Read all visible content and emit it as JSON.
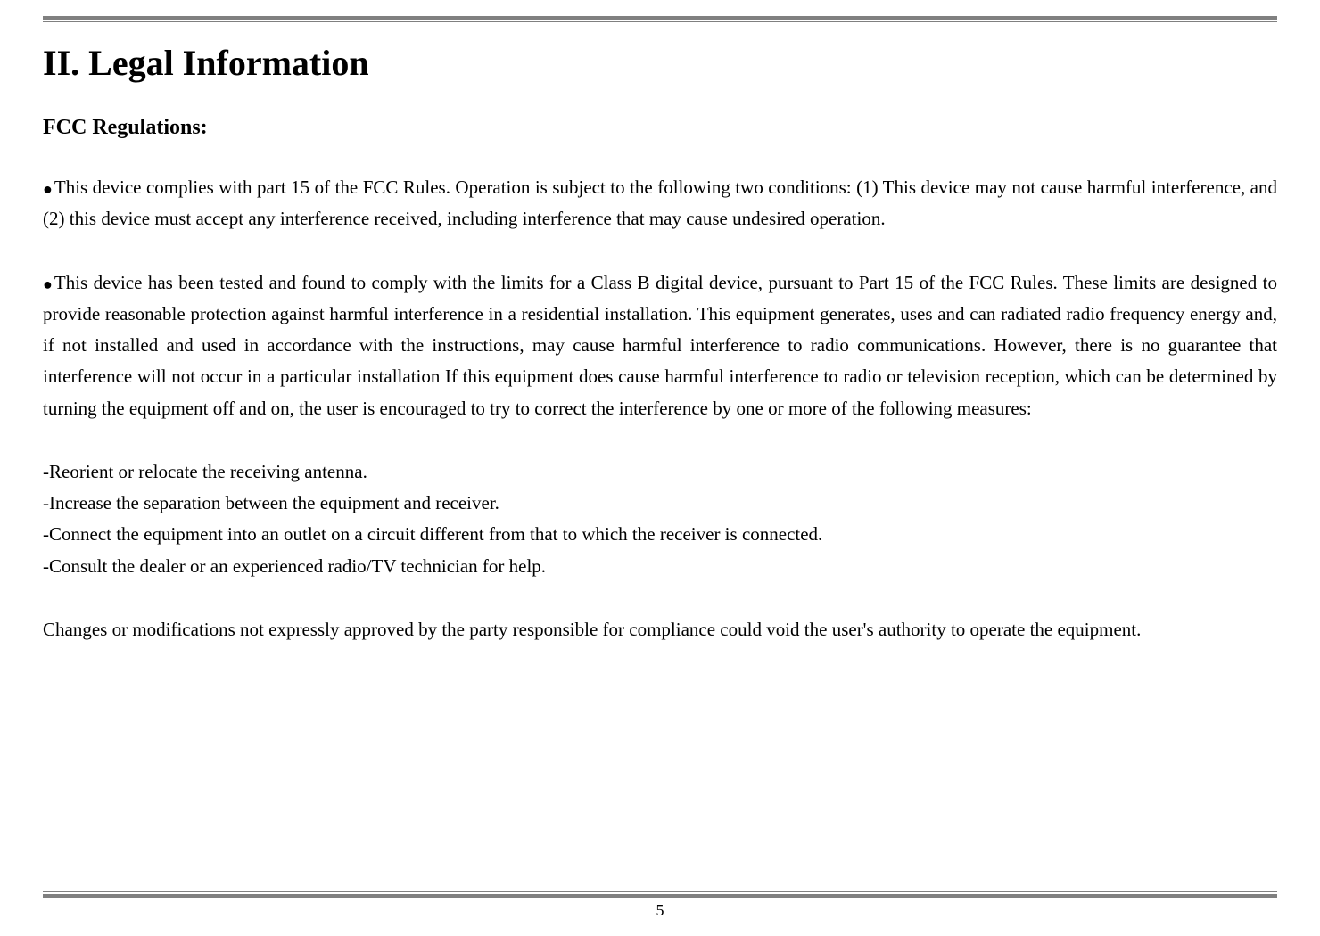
{
  "document": {
    "title": "II. Legal Information",
    "section_heading": "FCC Regulations:",
    "bullet_symbol": "●",
    "para1": "This device complies with part 15 of the FCC Rules. Operation is subject to the following two conditions: (1) This device may not cause harmful interference, and (2) this device must accept any interference received, including interference that may cause undesired operation.",
    "para2": "This device has been tested and found to comply with the limits for a Class B digital device, pursuant to Part 15 of the FCC Rules. These limits are designed to provide reasonable protection against harmful interference in a residential installation. This equipment generates, uses and can radiated radio frequency energy and, if not installed and used in accordance with the instructions, may cause harmful interference to radio communications. However, there is no guarantee that interference will not occur in a particular installation If this equipment does cause harmful interference to radio or television reception, which can be determined by turning the equipment off and on, the user is encouraged to try to correct the interference by one or more of the following measures:",
    "measures": [
      "-Reorient or relocate the receiving antenna.",
      "-Increase the separation between the equipment and receiver.",
      "-Connect the equipment into an outlet on a circuit different from that to which the receiver is connected.",
      "-Consult the dealer or an experienced radio/TV technician for help."
    ],
    "para3": "Changes or modifications not expressly approved by the party responsible for compliance could void the user's authority to operate the equipment.",
    "page_number": "5",
    "colors": {
      "border": "#808080",
      "text": "#000000",
      "background": "#ffffff"
    },
    "typography": {
      "title_fontsize": 40,
      "heading_fontsize": 24,
      "body_fontsize": 21,
      "pagenum_fontsize": 18,
      "line_height": 1.68,
      "font_family": "Times New Roman"
    }
  }
}
